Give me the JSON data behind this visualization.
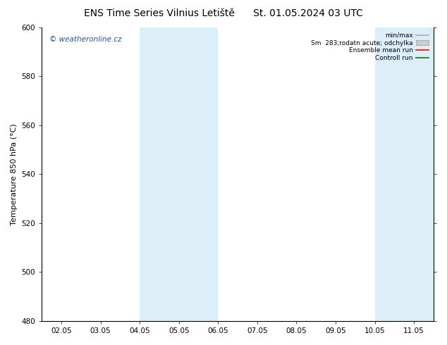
{
  "title_left": "ENS Time Series Vilnius Letiště",
  "title_right": "St. 01.05.2024 03 UTC",
  "ylabel": "Temperature 850 hPa (°C)",
  "ylim": [
    480,
    600
  ],
  "yticks": [
    480,
    500,
    520,
    540,
    560,
    580,
    600
  ],
  "xtick_labels": [
    "02.05",
    "03.05",
    "04.05",
    "05.05",
    "06.05",
    "07.05",
    "08.05",
    "09.05",
    "10.05",
    "11.05"
  ],
  "xtick_positions": [
    0,
    1,
    2,
    3,
    4,
    5,
    6,
    7,
    8,
    9
  ],
  "xlim": [
    -0.5,
    9.5
  ],
  "shade_bands": [
    {
      "x_start": 2.0,
      "x_end": 4.0
    },
    {
      "x_start": 8.0,
      "x_end": 9.5
    }
  ],
  "shade_color": "#dceef8",
  "watermark": "© weatheronline.cz",
  "watermark_color": "#2255aa",
  "legend_items": [
    {
      "label": "min/max",
      "color": "#aaaaaa",
      "type": "line"
    },
    {
      "label": "Sm  283;rodatn acute; odchylka",
      "color": "#cccccc",
      "type": "box"
    },
    {
      "label": "Ensemble mean run",
      "color": "#ff0000",
      "type": "line"
    },
    {
      "label": "Controll run",
      "color": "#008000",
      "type": "line"
    }
  ],
  "background_color": "#ffffff",
  "title_fontsize": 10,
  "tick_fontsize": 7.5,
  "ylabel_fontsize": 8
}
